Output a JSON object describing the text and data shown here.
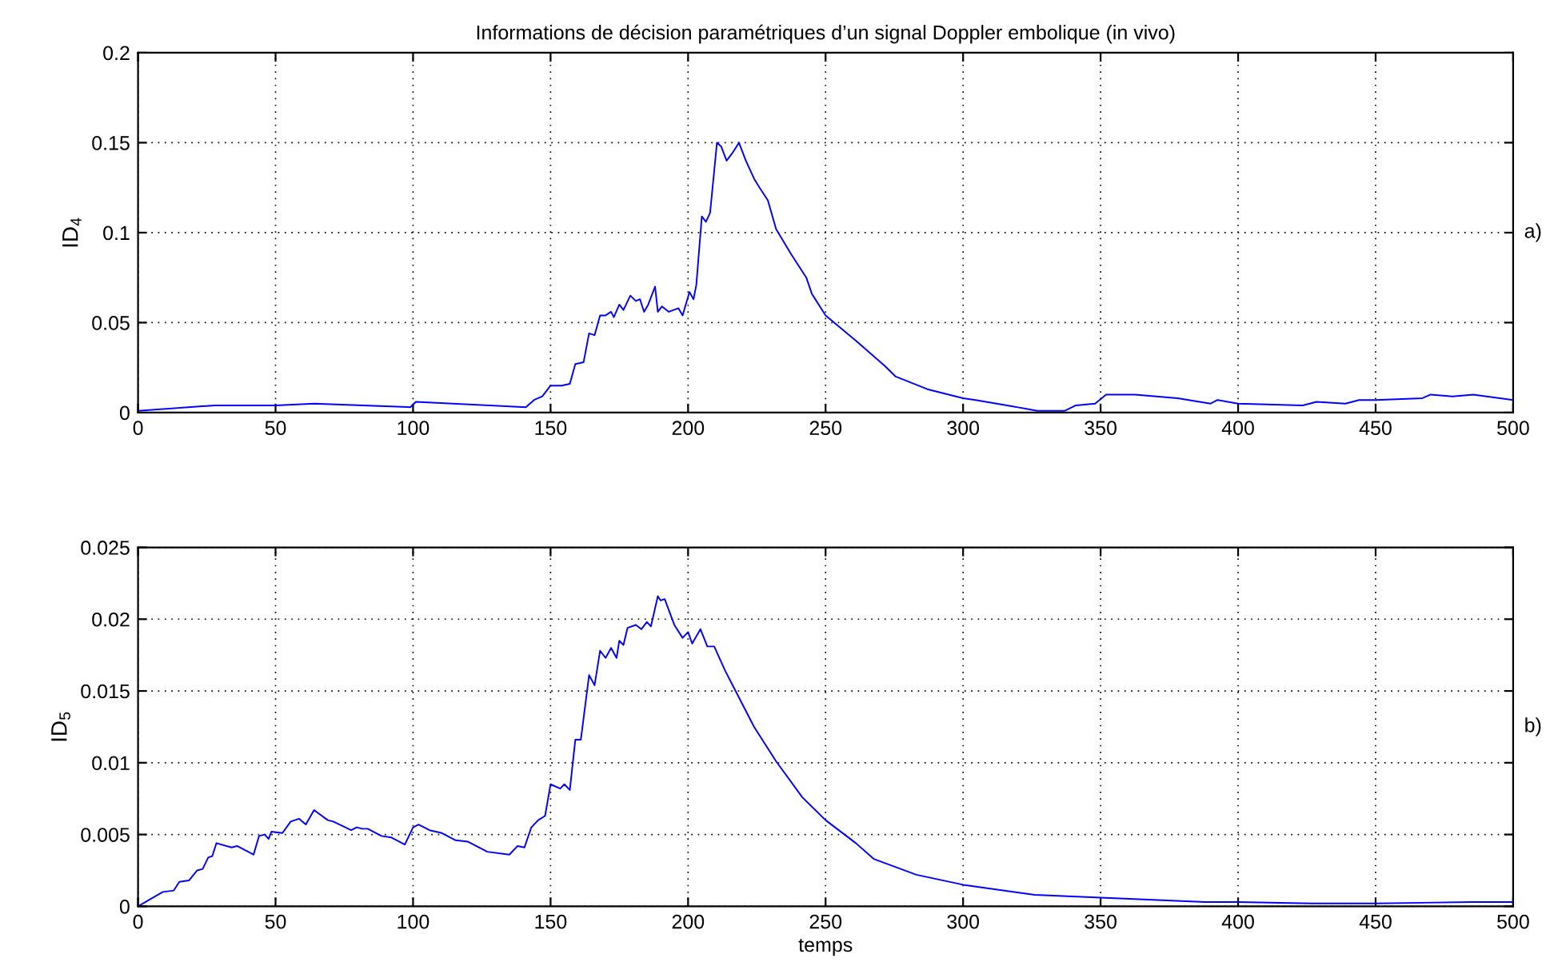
{
  "chart_data": [
    {
      "type": "line",
      "title": "Informations de décision paramétriques d’un signal Doppler embolique (in vivo)",
      "ylabel": "ID$_{4}$",
      "annotations": [
        "a)"
      ],
      "grid": true,
      "xlim": [
        0,
        500
      ],
      "xticks": [
        0,
        50,
        100,
        150,
        200,
        250,
        300,
        350,
        400,
        450,
        500
      ],
      "ylim": [
        0,
        0.2
      ],
      "yticks": [
        0,
        0.05,
        0.1,
        0.15,
        0.2
      ],
      "x": [
        0,
        28,
        50,
        64,
        99,
        101,
        141,
        144,
        147,
        150,
        154,
        157,
        159,
        162,
        164,
        166,
        168,
        170,
        172,
        173,
        175,
        176.5,
        179,
        181,
        182.5,
        184,
        185.5,
        188,
        189,
        190.5,
        193,
        196.5,
        198,
        200.5,
        202,
        203,
        205,
        206.5,
        208,
        210.5,
        212,
        214,
        216,
        218.5,
        221,
        224,
        226,
        229,
        232,
        237.5,
        243,
        245,
        250,
        261,
        264,
        271.5,
        275.5,
        287,
        300,
        304.5,
        316,
        327,
        337,
        341,
        348,
        352,
        362.5,
        378,
        390,
        392.5,
        400,
        423.5,
        428.5,
        439,
        444,
        450,
        467,
        470,
        478,
        485.5,
        500
      ],
      "series": [
        {
          "color": "#0000ff",
          "values": [
            0.001,
            0.004,
            0.004,
            0.005,
            0.003,
            0.006,
            0.003,
            0.007,
            0.009,
            0.015,
            0.015,
            0.016,
            0.027,
            0.028,
            0.044,
            0.043,
            0.054,
            0.054,
            0.056,
            0.053,
            0.06,
            0.057,
            0.065,
            0.062,
            0.063,
            0.056,
            0.06,
            0.07,
            0.056,
            0.059,
            0.056,
            0.058,
            0.054,
            0.067,
            0.063,
            0.071,
            0.109,
            0.106,
            0.111,
            0.15,
            0.148,
            0.14,
            0.144,
            0.15,
            0.14,
            0.13,
            0.125,
            0.118,
            0.102,
            0.088,
            0.075,
            0.066,
            0.054,
            0.04,
            0.036,
            0.026,
            0.02,
            0.013,
            0.008,
            0.007,
            0.004,
            0.001,
            0.001,
            0.004,
            0.005,
            0.01,
            0.01,
            0.008,
            0.005,
            0.007,
            0.005,
            0.004,
            0.006,
            0.005,
            0.007,
            0.007,
            0.008,
            0.01,
            0.009,
            0.01,
            0.007
          ]
        }
      ]
    },
    {
      "type": "line",
      "xlabel": "temps",
      "ylabel": "ID$_{5}$",
      "annotations": [
        "b)"
      ],
      "grid": true,
      "xlim": [
        0,
        500
      ],
      "xticks": [
        0,
        50,
        100,
        150,
        200,
        250,
        300,
        350,
        400,
        450,
        500
      ],
      "ylim": [
        0,
        0.025
      ],
      "yticks": [
        0,
        0.005,
        0.01,
        0.015,
        0.02,
        0.025
      ],
      "x": [
        0,
        9,
        13,
        15,
        18.5,
        21.5,
        23.5,
        25.5,
        27,
        28.5,
        34,
        36,
        42,
        44,
        46,
        47.5,
        48.5,
        52.5,
        55.5,
        58.5,
        61,
        64,
        69,
        71,
        77.5,
        79.5,
        81.5,
        83.5,
        88.5,
        92,
        97,
        100,
        102,
        106,
        110.5,
        115.5,
        120,
        127,
        135,
        138,
        140.5,
        143,
        145.5,
        148,
        150,
        153.5,
        155,
        157,
        159,
        161,
        164,
        166,
        168,
        170,
        172,
        174,
        175,
        176.5,
        178,
        181,
        183,
        185,
        186.5,
        189,
        190,
        191.5,
        195,
        198,
        200,
        201.5,
        204.5,
        207,
        209.5,
        213.5,
        217,
        224,
        232,
        241.5,
        250,
        261,
        267.5,
        283,
        300,
        326,
        350,
        388,
        400,
        426.5,
        450,
        485,
        500
      ],
      "series": [
        {
          "color": "#0000ff",
          "values": [
            0,
            0.001,
            0.0011,
            0.0017,
            0.0018,
            0.0025,
            0.0026,
            0.0034,
            0.0035,
            0.0044,
            0.0041,
            0.0042,
            0.0036,
            0.0049,
            0.005,
            0.0047,
            0.0052,
            0.0051,
            0.0059,
            0.0061,
            0.0057,
            0.0067,
            0.006,
            0.0059,
            0.0053,
            0.0055,
            0.0054,
            0.0054,
            0.0049,
            0.0048,
            0.0043,
            0.0055,
            0.0057,
            0.0053,
            0.0051,
            0.0046,
            0.0045,
            0.0038,
            0.0036,
            0.0042,
            0.0041,
            0.0055,
            0.006,
            0.0063,
            0.0085,
            0.0082,
            0.0085,
            0.0081,
            0.0116,
            0.0116,
            0.0161,
            0.0154,
            0.0178,
            0.0173,
            0.018,
            0.0173,
            0.0185,
            0.0182,
            0.0194,
            0.0196,
            0.0193,
            0.0198,
            0.0195,
            0.0216,
            0.0213,
            0.0214,
            0.0196,
            0.0187,
            0.0191,
            0.0183,
            0.0193,
            0.0181,
            0.0181,
            0.0164,
            0.0151,
            0.0125,
            0.0101,
            0.0076,
            0.006,
            0.0044,
            0.0033,
            0.0022,
            0.0015,
            0.0008,
            0.0006,
            0.0003,
            0.0003,
            0.0002,
            0.0002,
            0.0003,
            0.0003
          ]
        }
      ]
    }
  ]
}
